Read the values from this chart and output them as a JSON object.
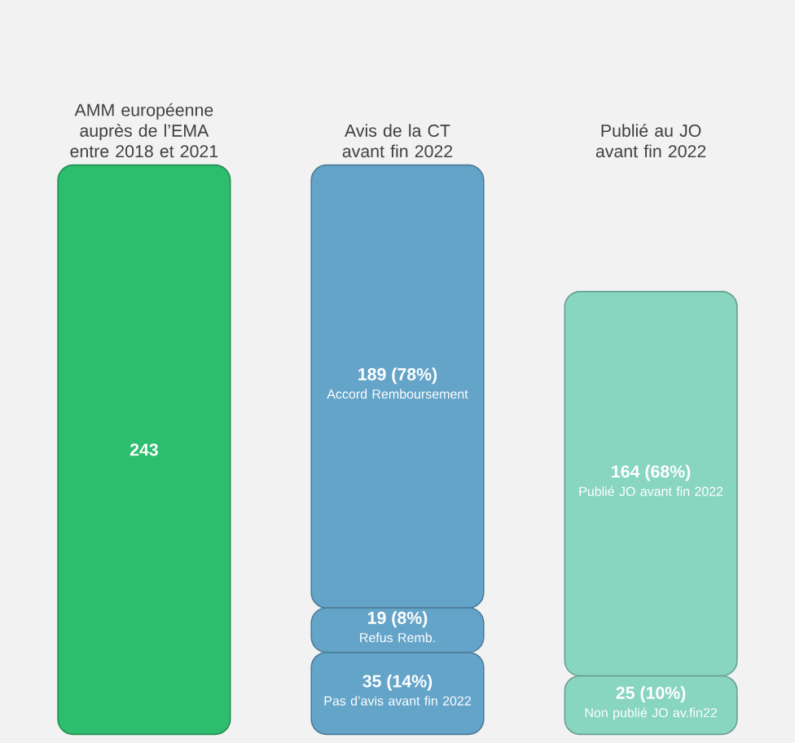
{
  "chart_data": {
    "type": "bar",
    "stacked": true,
    "categories": [
      "AMM européenne auprès de l’EMA entre 2018 et 2021",
      "Avis de la CT avant fin 2022",
      "Publié au JO avant fin 2022"
    ],
    "series": [
      {
        "values": [
          243,
          35,
          25
        ],
        "colors": [
          "#2dbd6e",
          "#64a4c9",
          "#88d5c0"
        ],
        "value_labels": [
          "243",
          "35 (14%)",
          "25 (10%)"
        ]
      },
      {
        "values": [
          null,
          19,
          164
        ],
        "colors": [
          null,
          "#64a4c9",
          "#88d5c0"
        ],
        "value_labels": [
          null,
          "19 (8%)",
          "164 (68%)"
        ]
      },
      {
        "values": [
          null,
          189,
          null
        ],
        "colors": [
          null,
          "#64a4c9",
          null
        ],
        "value_labels": [
          null,
          "189 (78%)",
          null
        ]
      }
    ],
    "annotations": [
      "Accord Remboursement",
      "Refus Remb.",
      "Pas d’avis avant fin 2022",
      "Publié JO avant fin 2022",
      "Non publié JO av.fin22"
    ]
  }
}
